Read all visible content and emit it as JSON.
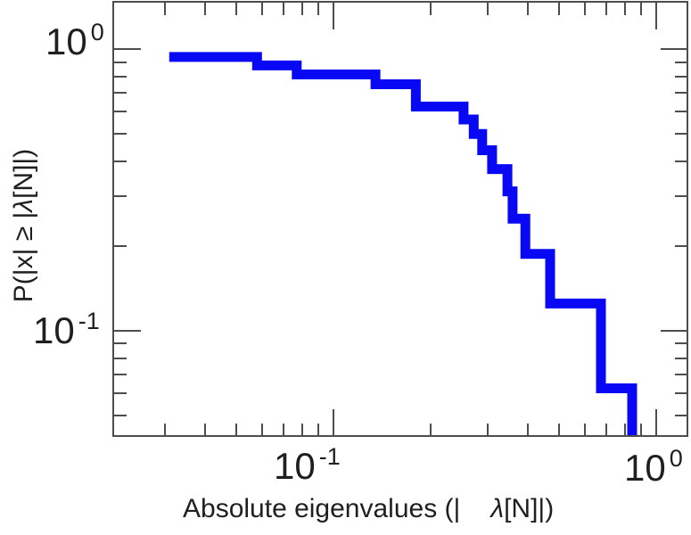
{
  "figure": {
    "background": "#ffffff",
    "frame_color": "#4d4d4d",
    "text_color": "#1f1f1f"
  },
  "chart_data": {
    "type": "line",
    "subtype": "empirical_ccdf_step",
    "title": "",
    "xlabel": "Absolute eigenvalues (| λ[N]|)",
    "ylabel": "P(|x| ≥ |λ[N]|)",
    "xlabel_part1": "Absolute eigenvalues (|",
    "xlabel_lambda": "λ",
    "xlabel_part2": "[N]|)",
    "ylabel_part1": "P(|x| ≥ |",
    "ylabel_lambda": "λ",
    "ylabel_part2": "[N]|)",
    "x_scale": "log",
    "y_scale": "log",
    "xlim": [
      0.0208,
      1.257
    ],
    "ylim": [
      0.042,
      1.472
    ],
    "grid": false,
    "legend": false,
    "n_points": 16,
    "eigenvalues_abs": [
      0.031,
      0.058,
      0.077,
      0.135,
      0.18,
      0.18,
      0.253,
      0.272,
      0.289,
      0.31,
      0.346,
      0.359,
      0.393,
      0.469,
      0.674,
      0.842
    ],
    "series": [
      {
        "name": "eigenvalue-ccdf",
        "color": "#0808f5",
        "line_width": 11,
        "step_x": [
          0.031,
          0.058,
          0.077,
          0.135,
          0.18,
          0.253,
          0.272,
          0.289,
          0.31,
          0.346,
          0.359,
          0.393,
          0.469,
          0.674,
          0.842
        ],
        "step_p": [
          0.9375,
          0.875,
          0.8125,
          0.75,
          0.625,
          0.5625,
          0.5,
          0.4375,
          0.375,
          0.3125,
          0.25,
          0.1875,
          0.125,
          0.0625
        ]
      }
    ],
    "x_major_ticks": [
      0.1,
      1.0
    ],
    "x_minor_ticks": [
      0.03,
      0.04,
      0.05,
      0.06,
      0.07,
      0.08,
      0.09,
      0.2,
      0.3,
      0.4,
      0.5,
      0.6,
      0.7,
      0.8,
      0.9
    ],
    "y_major_ticks": [
      1.0,
      0.1
    ],
    "y_minor_ticks": [
      0.9,
      0.8,
      0.7,
      0.6,
      0.5,
      0.4,
      0.3,
      0.2,
      0.09,
      0.08,
      0.07,
      0.06,
      0.05
    ],
    "x_tick_labels": [
      {
        "mant": "10",
        "exp": "-1"
      },
      {
        "mant": "10",
        "exp": "0"
      }
    ],
    "y_tick_labels": [
      {
        "mant": "10",
        "exp": "0"
      },
      {
        "mant": "10",
        "exp": "-1"
      }
    ]
  }
}
